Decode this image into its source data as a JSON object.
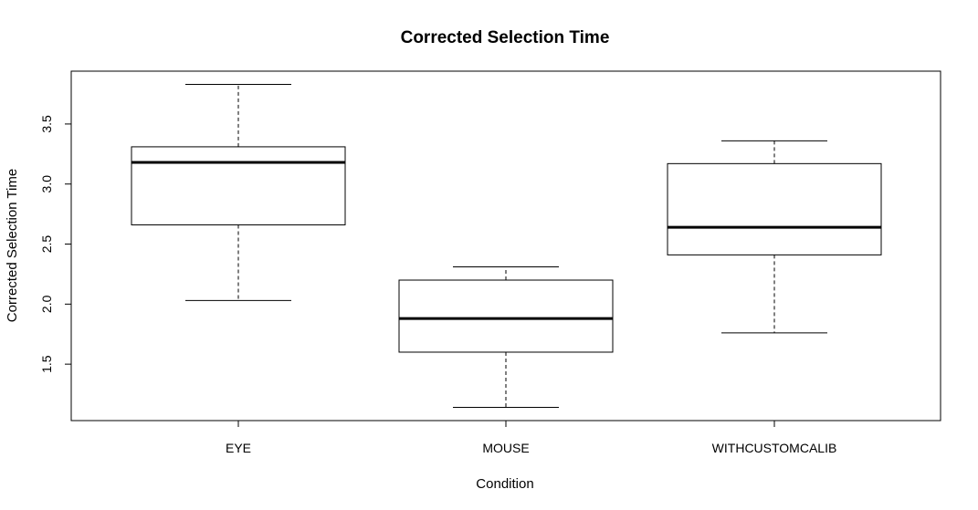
{
  "chart_data": {
    "type": "boxplot",
    "title": "Corrected Selection Time",
    "xlabel": "Condition",
    "ylabel": "Corrected Selection Time",
    "categories": [
      "EYE",
      "MOUSE",
      "WITHCUSTOMCALIB"
    ],
    "boxes": [
      {
        "category": "EYE",
        "min": 2.03,
        "q1": 2.66,
        "median": 3.18,
        "q3": 3.31,
        "max": 3.83
      },
      {
        "category": "MOUSE",
        "min": 1.14,
        "q1": 1.6,
        "median": 1.88,
        "q3": 2.2,
        "max": 2.31
      },
      {
        "category": "WITHCUSTOMCALIB",
        "min": 1.76,
        "q1": 2.41,
        "median": 2.64,
        "q3": 3.17,
        "max": 3.36
      }
    ],
    "yticks": [
      1.5,
      2.0,
      2.5,
      3.0,
      3.5
    ],
    "ytick_labels": [
      "1.5",
      "2.0",
      "2.5",
      "3.0",
      "3.5"
    ],
    "ylim": [
      1.03,
      3.94
    ],
    "grid": false,
    "legend": "none"
  }
}
